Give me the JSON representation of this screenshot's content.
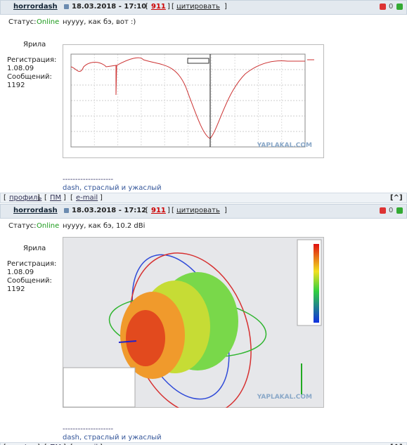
{
  "brackets": {
    "open": "[",
    "close": "]"
  },
  "posts": [
    {
      "header": {
        "author": "horrordash",
        "date": "18.03.2018 - 17:10",
        "number": "911",
        "quote": "цитировать",
        "rating": "0"
      },
      "user": {
        "status_label": "Статус:",
        "status": "Online",
        "rank": "Ярила",
        "reg_label": "Регистрация:",
        "reg_date": "1.08.09",
        "msgs_label": "Сообщений:",
        "msgs": "1192"
      },
      "body": "нуууу, как бэ, вот :)",
      "image_watermark": "YAPLAKAL.COM",
      "signature": {
        "separator": "--------------------",
        "text": "dash, страслый и ужаслый"
      },
      "footer": {
        "links": [
          "профиль",
          "ПМ",
          "e-mail"
        ],
        "top": "[^]"
      }
    },
    {
      "header": {
        "author": "horrordash",
        "date": "18.03.2018 - 17:12",
        "number": "911",
        "quote": "цитировать",
        "rating": "0"
      },
      "user": {
        "status_label": "Статус:",
        "status": "Online",
        "rank": "Ярила",
        "reg_label": "Регистрация:",
        "reg_date": "1.08.09",
        "msgs_label": "Сообщений:",
        "msgs": "1192"
      },
      "body": "нуууу, как бэ, 10.2 dBi",
      "image_watermark": "YAPLAKAL.COM",
      "signature": {
        "separator": "--------------------",
        "text": "dash, страслый и ужаслый"
      },
      "footer": {
        "links": [
          "профиль",
          "ПМ",
          "e-mail"
        ],
        "top": "[^]"
      }
    }
  ]
}
